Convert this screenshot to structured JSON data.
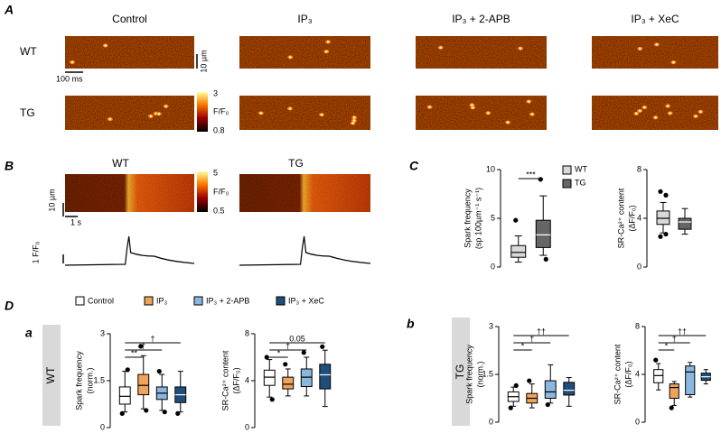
{
  "panel_labels": [
    "A",
    "B",
    "C",
    "D",
    "a",
    "b"
  ],
  "panel_a": {
    "columns": [
      "Control",
      "IP₃",
      "IP₃ + 2-APB",
      "IP₃ + XeC"
    ],
    "rows": [
      "WT",
      "TG"
    ],
    "time_scale": "100 ms",
    "space_scale": "10 µm",
    "colorbar": {
      "max": 3,
      "label": "F/F₀",
      "min": 0.8
    }
  },
  "panel_b": {
    "columns": [
      "WT",
      "TG"
    ],
    "space_scale": "10 µm",
    "time_scale": "1 s",
    "trace_scale": "1 F/F₀",
    "colorbar": {
      "max": 5,
      "label": "F/F₀",
      "min": 0.5
    }
  },
  "panel_d": {
    "rows": [
      "WT",
      "TG"
    ],
    "legend": [
      {
        "name": "Control",
        "color": "#ffffff"
      },
      {
        "name": "IP₃",
        "color": "#f0a35a"
      },
      {
        "name": "IP₃ + 2-APB",
        "color": "#8ab7e0"
      },
      {
        "name": "IP₃ + XeC",
        "color": "#1f4e79"
      }
    ]
  },
  "chart_data": [
    {
      "type": "box",
      "ylabel": [
        "Spark frequency",
        "(sp 100µm⁻¹ s⁻¹)"
      ],
      "ylim": [
        0,
        10
      ],
      "yticks": [
        0,
        5,
        10
      ],
      "annotations": [
        "***"
      ],
      "legend": [
        {
          "name": "WT",
          "color": "#d9d9d9"
        },
        {
          "name": "TG",
          "color": "#666666"
        }
      ],
      "boxes": [
        {
          "min": 0.5,
          "q1": 1,
          "median": 1.5,
          "q3": 2.2,
          "max": 3.2,
          "outliers": [
            4.8
          ]
        },
        {
          "min": 1.2,
          "q1": 2,
          "median": 3.3,
          "q3": 4.8,
          "max": 7.3,
          "outliers": [
            9,
            0.8
          ]
        }
      ]
    },
    {
      "type": "box",
      "ylabel": [
        "SR-Ca²⁺ content",
        "(ΔF/F₀)"
      ],
      "ylim": [
        0,
        8
      ],
      "yticks": [
        0,
        4,
        8
      ],
      "annotations": [],
      "colors": [
        "#d9d9d9",
        "#666666"
      ],
      "boxes": [
        {
          "min": 2.8,
          "q1": 3.5,
          "median": 4,
          "q3": 4.6,
          "max": 5.3,
          "outliers": [
            6.2,
            5.9,
            2.5,
            2.7
          ]
        },
        {
          "min": 2.7,
          "q1": 3.1,
          "median": 3.7,
          "q3": 4,
          "max": 4.8,
          "outliers": []
        }
      ]
    },
    {
      "type": "box",
      "ylabel": [
        "Spark frequency",
        "(norm.)"
      ],
      "ylim": [
        0,
        3
      ],
      "yticks": [
        0,
        1.5,
        3
      ],
      "annotations": [
        "**",
        "†",
        "†"
      ],
      "boxes": [
        {
          "min": 0.5,
          "q1": 0.75,
          "median": 1.0,
          "q3": 1.3,
          "max": 1.8,
          "outliers": [
            0.45,
            1.85
          ]
        },
        {
          "min": 0.6,
          "q1": 1.05,
          "median": 1.35,
          "q3": 1.7,
          "max": 2.3,
          "outliers": [
            2.6,
            0.55
          ]
        },
        {
          "min": 0.55,
          "q1": 0.9,
          "median": 1.1,
          "q3": 1.3,
          "max": 1.7,
          "outliers": [
            1.8,
            0.5
          ]
        },
        {
          "min": 0.5,
          "q1": 0.8,
          "median": 1.05,
          "q3": 1.3,
          "max": 1.8,
          "outliers": [
            0.45
          ]
        }
      ]
    },
    {
      "type": "box",
      "ylabel": [
        "SR-Ca²⁺ content",
        "(ΔF/F₀)"
      ],
      "ylim": [
        0,
        8
      ],
      "yticks": [
        0,
        4,
        8
      ],
      "annotations": [
        "*",
        "†",
        "0.05"
      ],
      "boxes": [
        {
          "min": 2.6,
          "q1": 3.6,
          "median": 4.3,
          "q3": 4.9,
          "max": 5.8,
          "outliers": [
            6.0,
            2.4
          ]
        },
        {
          "min": 2.7,
          "q1": 3.3,
          "median": 3.7,
          "q3": 4.3,
          "max": 5.0,
          "outliers": [
            5.4
          ]
        },
        {
          "min": 2.7,
          "q1": 3.5,
          "median": 4.3,
          "q3": 5.0,
          "max": 6.0,
          "outliers": [
            6.4
          ]
        },
        {
          "min": 1.8,
          "q1": 3.3,
          "median": 4.5,
          "q3": 5.4,
          "max": 6.6,
          "outliers": [
            6.9
          ]
        }
      ]
    },
    {
      "type": "box",
      "ylabel": [
        "Spark frequency",
        "(norm.)"
      ],
      "ylim": [
        0,
        3
      ],
      "yticks": [
        0,
        1.5,
        3
      ],
      "annotations": [
        "*",
        "†",
        "††"
      ],
      "boxes": [
        {
          "min": 0.5,
          "q1": 0.65,
          "median": 0.8,
          "q3": 0.95,
          "max": 1.1,
          "outliers": [
            0.45,
            1.15
          ]
        },
        {
          "min": 0.45,
          "q1": 0.6,
          "median": 0.75,
          "q3": 0.9,
          "max": 1.2,
          "outliers": [
            1.3
          ]
        },
        {
          "min": 0.6,
          "q1": 0.75,
          "median": 0.95,
          "q3": 1.3,
          "max": 1.8,
          "outliers": [
            0.55
          ]
        },
        {
          "min": 0.5,
          "q1": 0.85,
          "median": 1.0,
          "q3": 1.25,
          "max": 1.4,
          "outliers": []
        }
      ]
    },
    {
      "type": "box",
      "ylabel": [
        "SR-Ca²⁺ content",
        "(ΔF/F₀)"
      ],
      "ylim": [
        0,
        8
      ],
      "yticks": [
        0,
        4,
        8
      ],
      "annotations": [
        "*",
        "†",
        "††"
      ],
      "boxes": [
        {
          "min": 2.7,
          "q1": 3.3,
          "median": 3.9,
          "q3": 4.4,
          "max": 4.9,
          "outliers": [
            5.2
          ]
        },
        {
          "min": 1.4,
          "q1": 2.0,
          "median": 2.9,
          "q3": 3.2,
          "max": 3.4,
          "outliers": [
            1.2
          ]
        },
        {
          "min": 2.1,
          "q1": 2.3,
          "median": 4.2,
          "q3": 4.7,
          "max": 5.0,
          "outliers": []
        },
        {
          "min": 3.2,
          "q1": 3.5,
          "median": 3.8,
          "q3": 4.1,
          "max": 4.4,
          "outliers": []
        }
      ]
    }
  ]
}
